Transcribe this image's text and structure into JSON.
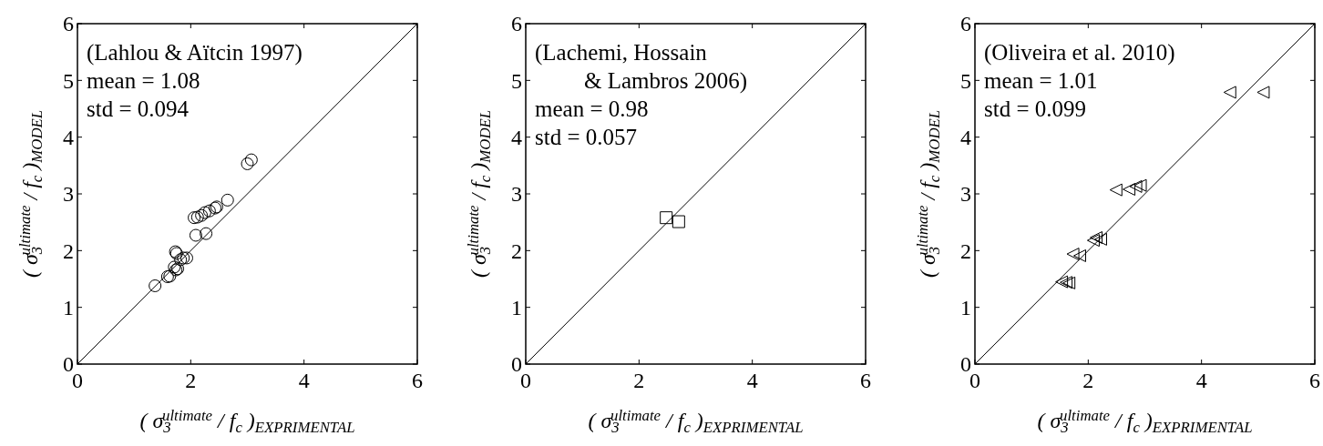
{
  "chart_data": [
    {
      "type": "scatter",
      "xlabel": "( σ$_{3}$$^{ultimate}$ / f$_{c}$ )$_{EXPRIMENTAL}$",
      "ylabel": "( σ$_{3}$$^{ultimate}$ / f$_{c}$ )$_{MODEL}$",
      "annotations": [
        "(Lahlou & Aïtcin 1997)",
        "mean = 1.08",
        "std = 0.094"
      ],
      "xlim": [
        0,
        6
      ],
      "ylim": [
        0,
        6
      ],
      "xticks": [
        0,
        2,
        4,
        6
      ],
      "yticks": [
        0,
        1,
        2,
        3,
        4,
        5,
        6
      ],
      "series": [
        {
          "type": "scatter",
          "marker": "circle",
          "color": "#000000",
          "x": [
            1.37,
            1.59,
            1.63,
            1.71,
            1.74,
            1.77,
            1.73,
            1.75,
            1.82,
            1.87,
            1.93,
            2.09,
            2.27,
            2.06,
            2.12,
            2.19,
            2.25,
            2.33,
            2.43,
            2.46,
            2.65,
            3.0,
            3.07
          ],
          "values": [
            1.38,
            1.54,
            1.55,
            1.71,
            1.66,
            1.68,
            1.98,
            1.95,
            1.84,
            1.87,
            1.87,
            2.27,
            2.3,
            2.58,
            2.59,
            2.62,
            2.67,
            2.7,
            2.75,
            2.77,
            2.89,
            3.53,
            3.6
          ]
        },
        {
          "type": "line",
          "line_style": "solid",
          "color": "#000000",
          "x": [
            0,
            6
          ],
          "values": [
            0,
            6
          ]
        }
      ]
    },
    {
      "type": "scatter",
      "xlabel": "( σ$_{3}$$^{ultimate}$ / f$_{c}$ )$_{EXPRIMENTAL}$",
      "ylabel": "( σ$_{3}$$^{ultimate}$ / f$_{c}$ )$_{MODEL}$",
      "annotations": [
        "(Lachemi, Hossain",
        "& Lambros 2006)",
        "mean = 0.98",
        "std = 0.057"
      ],
      "xlim": [
        0,
        6
      ],
      "ylim": [
        0,
        6
      ],
      "xticks": [
        0,
        2,
        4,
        6
      ],
      "yticks": [
        0,
        1,
        2,
        3,
        4,
        5,
        6
      ],
      "series": [
        {
          "type": "scatter",
          "marker": "square",
          "color": "#000000",
          "x": [
            2.48,
            2.7
          ],
          "values": [
            2.58,
            2.51
          ]
        },
        {
          "type": "line",
          "line_style": "solid",
          "color": "#000000",
          "x": [
            0,
            6
          ],
          "values": [
            0,
            6
          ]
        }
      ]
    },
    {
      "type": "scatter",
      "xlabel": "( σ$_{3}$$^{ultimate}$ / f$_{c}$ )$_{EXPRIMENTAL}$",
      "ylabel": "( σ$_{3}$$^{ultimate}$ / f$_{c}$ )$_{MODEL}$",
      "annotations": [
        "(Oliveira et al. 2010)",
        "mean = 1.01",
        "std = 0.099"
      ],
      "xlim": [
        0,
        6
      ],
      "ylim": [
        0,
        6
      ],
      "xticks": [
        0,
        2,
        4,
        6
      ],
      "yticks": [
        0,
        1,
        2,
        3,
        4,
        5,
        6
      ],
      "series": [
        {
          "type": "scatter",
          "marker": "triangle",
          "color": "#000000",
          "x": [
            4.5,
            5.09,
            2.49,
            2.72,
            2.84,
            2.92,
            2.09,
            2.14,
            2.22,
            1.73,
            1.85,
            1.53,
            1.61,
            1.66
          ],
          "values": [
            4.79,
            4.79,
            3.07,
            3.08,
            3.13,
            3.15,
            2.18,
            2.23,
            2.2,
            1.94,
            1.91,
            1.45,
            1.44,
            1.43
          ]
        },
        {
          "type": "line",
          "line_style": "solid",
          "color": "#000000",
          "x": [
            0,
            6
          ],
          "values": [
            0,
            6
          ]
        }
      ]
    }
  ]
}
